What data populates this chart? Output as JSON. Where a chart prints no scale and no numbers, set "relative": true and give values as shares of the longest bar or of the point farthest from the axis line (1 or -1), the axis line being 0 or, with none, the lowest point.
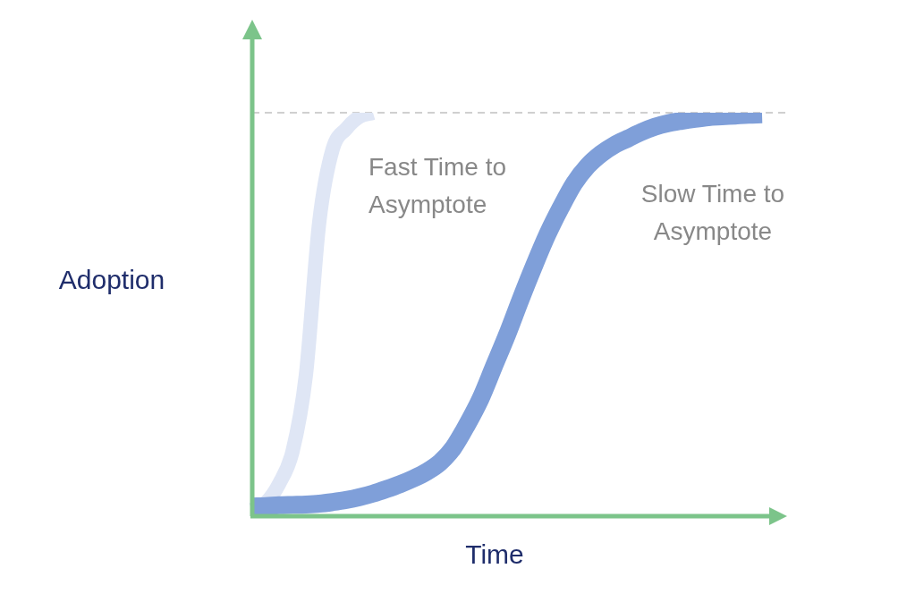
{
  "chart_data": {
    "type": "line",
    "relative": true,
    "xlabel": "Time",
    "ylabel": "Adoption",
    "marker": "none",
    "categories": [
      null,
      null,
      null,
      null,
      null,
      null,
      null,
      null,
      null,
      null,
      null,
      null,
      null,
      null,
      null,
      null,
      null,
      null,
      null,
      null,
      null,
      null,
      null,
      null,
      null,
      null,
      null,
      null,
      null,
      null,
      null,
      null,
      null,
      null,
      null,
      null,
      null,
      null,
      null
    ],
    "series": [
      {
        "name": "Fast Time to Asymptote",
        "color": "#dfe6f5",
        "values": [
          0.016,
          0.033,
          0.08,
          0.16,
          0.35,
          0.73,
          0.91,
          0.96,
          0.99,
          1.0,
          null,
          null,
          null,
          null,
          null,
          null,
          null,
          null,
          null,
          null,
          null,
          null,
          null,
          null,
          null,
          null,
          null,
          null,
          null,
          null,
          null,
          null,
          null,
          null,
          null,
          null,
          null,
          null,
          null
        ]
      },
      {
        "name": "Slow Time to Asymptote",
        "color": "#7f9fd9",
        "values": [
          0.024,
          0.025,
          0.027,
          0.028,
          0.029,
          0.031,
          0.035,
          0.04,
          0.047,
          0.056,
          0.067,
          0.079,
          0.093,
          0.11,
          0.133,
          0.17,
          0.226,
          0.29,
          0.37,
          0.45,
          0.537,
          0.62,
          0.698,
          0.765,
          0.825,
          0.868,
          0.898,
          0.92,
          0.936,
          0.952,
          0.965,
          0.974,
          0.98,
          0.985,
          0.989,
          0.991,
          0.993,
          0.995,
          0.996
        ]
      }
    ],
    "ref_lines": [
      {
        "axis": "y",
        "value": 1,
        "color": "#d0d0d0",
        "line_style": "dashed"
      }
    ]
  }
}
